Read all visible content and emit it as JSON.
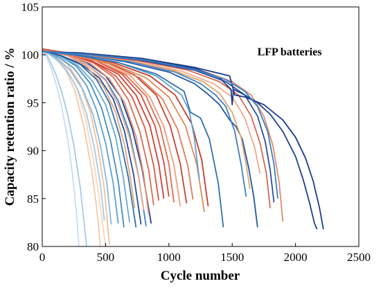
{
  "chart_data": {
    "type": "line",
    "title": "",
    "xlabel": "Cycle number",
    "ylabel": "Capacity retention ratio / %",
    "annotation": "LFP batteries",
    "xlim": [
      0,
      2500
    ],
    "ylim": [
      80,
      105
    ],
    "xticks": [
      0,
      500,
      1000,
      1500,
      2000,
      2500
    ],
    "yticks": [
      80,
      85,
      90,
      95,
      100,
      105
    ],
    "grid": false,
    "legend": "none",
    "series": [
      {
        "color": "#a9c9e6",
        "x": [
          0,
          30,
          60,
          100,
          150,
          200,
          250,
          300,
          330,
          350
        ],
        "y": [
          100.3,
          100.1,
          99.4,
          98.2,
          96.3,
          93.8,
          90.5,
          86.2,
          82.6,
          80.0
        ]
      },
      {
        "color": "#c9dcee",
        "x": [
          0,
          30,
          60,
          100,
          150,
          200,
          240,
          270,
          290
        ],
        "y": [
          100.2,
          99.9,
          99.0,
          97.4,
          94.8,
          91.3,
          87.4,
          83.5,
          80.0
        ]
      },
      {
        "color": "#f6c9a8",
        "x": [
          0,
          40,
          100,
          180,
          260,
          330,
          390,
          430,
          460
        ],
        "y": [
          100.4,
          100.3,
          99.8,
          98.6,
          96.2,
          92.4,
          88.0,
          84.0,
          80.0
        ]
      },
      {
        "color": "#f8d7bd",
        "x": [
          0,
          40,
          100,
          180,
          270,
          340,
          400,
          450,
          500
        ],
        "y": [
          100.4,
          100.4,
          99.9,
          98.8,
          96.6,
          93.4,
          89.4,
          85.0,
          80.0
        ]
      },
      {
        "color": "#f4bf99",
        "x": [
          0,
          40,
          100,
          200,
          300,
          380,
          440,
          490,
          530
        ],
        "y": [
          100.5,
          100.4,
          100.0,
          99.0,
          97.0,
          94.0,
          90.3,
          86.0,
          80.2
        ]
      },
      {
        "color": "#a7c7e3",
        "x": [
          0,
          50,
          120,
          200,
          280,
          350,
          410,
          460,
          490
        ],
        "y": [
          100.3,
          100.1,
          99.4,
          98.2,
          96.4,
          93.8,
          90.4,
          86.4,
          82.7
        ]
      },
      {
        "color": "#87b8dc",
        "x": [
          0,
          50,
          120,
          220,
          320,
          400,
          460,
          510,
          545
        ],
        "y": [
          100.4,
          100.2,
          99.6,
          98.4,
          96.4,
          93.8,
          90.5,
          86.6,
          82.3
        ]
      },
      {
        "color": "#5aa0cc",
        "x": [
          0,
          50,
          150,
          250,
          350,
          430,
          500,
          560,
          600
        ],
        "y": [
          100.4,
          100.2,
          99.6,
          98.6,
          96.8,
          94.2,
          90.8,
          86.6,
          82.4
        ]
      },
      {
        "color": "#3e8dc2",
        "x": [
          0,
          50,
          150,
          270,
          380,
          470,
          540,
          600,
          645
        ],
        "y": [
          100.5,
          100.3,
          99.8,
          98.8,
          97.0,
          94.4,
          91.0,
          86.8,
          82.0
        ]
      },
      {
        "color": "#6aa9d3",
        "x": [
          0,
          50,
          150,
          280,
          400,
          500,
          580,
          640,
          690
        ],
        "y": [
          100.4,
          100.3,
          99.8,
          98.9,
          97.2,
          94.8,
          91.4,
          87.2,
          82.5
        ]
      },
      {
        "color": "#2a6fb0",
        "x": [
          0,
          50,
          150,
          300,
          430,
          530,
          610,
          680,
          740
        ],
        "y": [
          100.4,
          100.3,
          99.9,
          99.0,
          97.4,
          95.0,
          91.6,
          87.2,
          82.0
        ]
      },
      {
        "color": "#1f4e9a",
        "x": [
          0,
          50,
          150,
          300,
          450,
          560,
          650,
          720,
          780
        ],
        "y": [
          100.4,
          100.3,
          99.9,
          99.1,
          97.6,
          95.4,
          92.0,
          87.6,
          82.3
        ]
      },
      {
        "color": "#3b82c4",
        "x": [
          0,
          50,
          200,
          350,
          500,
          600,
          690,
          760,
          820
        ],
        "y": [
          100.5,
          100.4,
          99.9,
          99.0,
          97.4,
          95.2,
          91.8,
          87.4,
          82.1
        ]
      },
      {
        "color": "#1b3f8f",
        "x": [
          0,
          50,
          200,
          350,
          500,
          620,
          710,
          790,
          860
        ],
        "y": [
          100.5,
          100.4,
          100.0,
          99.2,
          97.8,
          95.6,
          92.3,
          88.0,
          82.4
        ]
      },
      {
        "color": "#e8a27b",
        "x": [
          0,
          50,
          200,
          350,
          480,
          580,
          650,
          700,
          730
        ],
        "y": [
          100.5,
          100.4,
          99.9,
          98.8,
          96.8,
          94.0,
          90.6,
          86.8,
          84.0
        ]
      },
      {
        "color": "#f2a98a",
        "x": [
          0,
          50,
          200,
          350,
          500,
          600,
          690,
          760,
          800
        ],
        "y": [
          100.5,
          100.4,
          100.0,
          99.0,
          97.3,
          94.8,
          91.3,
          87.3,
          83.8
        ]
      },
      {
        "color": "#e98e70",
        "x": [
          0,
          50,
          200,
          380,
          530,
          650,
          740,
          800,
          840
        ],
        "y": [
          100.5,
          100.4,
          100.0,
          99.1,
          97.5,
          95.0,
          91.5,
          87.6,
          83.4
        ]
      },
      {
        "color": "#d96a52",
        "x": [
          0,
          50,
          200,
          400,
          560,
          680,
          770,
          840,
          880
        ],
        "y": [
          100.6,
          100.5,
          100.1,
          99.2,
          97.7,
          95.3,
          92.0,
          88.0,
          84.3
        ]
      },
      {
        "color": "#e0533e",
        "x": [
          0,
          50,
          200,
          400,
          580,
          710,
          810,
          880,
          920
        ],
        "y": [
          100.6,
          100.5,
          100.1,
          99.3,
          97.8,
          95.6,
          92.4,
          88.4,
          84.8
        ]
      },
      {
        "color": "#cf3d2e",
        "x": [
          0,
          50,
          200,
          400,
          600,
          740,
          850,
          920,
          960
        ],
        "y": [
          100.6,
          100.5,
          100.1,
          99.3,
          98.0,
          95.8,
          92.6,
          88.6,
          85.0
        ]
      },
      {
        "color": "#d94a35",
        "x": [
          0,
          50,
          200,
          420,
          630,
          780,
          890,
          960,
          1000
        ],
        "y": [
          100.6,
          100.5,
          100.2,
          99.4,
          98.0,
          95.8,
          92.6,
          88.8,
          85.2
        ]
      },
      {
        "color": "#e36b4f",
        "x": [
          0,
          50,
          200,
          450,
          660,
          820,
          930,
          1000,
          1040
        ],
        "y": [
          100.5,
          100.4,
          100.1,
          99.3,
          97.9,
          95.7,
          92.5,
          88.6,
          84.6
        ]
      },
      {
        "color": "#f09c7b",
        "x": [
          0,
          50,
          200,
          450,
          690,
          850,
          960,
          1040,
          1090
        ],
        "y": [
          100.5,
          100.4,
          100.1,
          99.3,
          97.9,
          95.6,
          92.5,
          88.5,
          84.2
        ]
      },
      {
        "color": "#c9412e",
        "x": [
          0,
          50,
          250,
          500,
          730,
          900,
          1010,
          1090,
          1140
        ],
        "y": [
          100.6,
          100.5,
          100.1,
          99.3,
          97.9,
          95.8,
          92.6,
          88.6,
          84.5
        ]
      },
      {
        "color": "#e07b5a",
        "x": [
          0,
          50,
          250,
          520,
          770,
          950,
          1070,
          1150,
          1190
        ],
        "y": [
          100.5,
          100.4,
          100.0,
          99.1,
          97.6,
          95.4,
          92.2,
          88.4,
          84.9
        ]
      },
      {
        "color": "#dd8a55",
        "x": [
          0,
          50,
          250,
          550,
          820,
          1000,
          1130,
          1220,
          1280
        ],
        "y": [
          100.5,
          100.4,
          100.0,
          99.1,
          97.6,
          95.6,
          92.6,
          88.6,
          83.6
        ]
      },
      {
        "color": "#c73b28",
        "x": [
          0,
          50,
          250,
          560,
          850,
          1050,
          1180,
          1260,
          1310
        ],
        "y": [
          100.6,
          100.5,
          100.1,
          99.2,
          97.8,
          95.8,
          92.8,
          89.0,
          84.2
        ]
      },
      {
        "color": "#5b9fc9",
        "x": [
          0,
          50,
          250,
          600,
          900,
          1100,
          1160,
          1200,
          1240
        ],
        "y": [
          100.4,
          100.3,
          100.0,
          99.2,
          97.8,
          95.8,
          94.2,
          91.4,
          87.0
        ]
      },
      {
        "color": "#2f6fb4",
        "x": [
          0,
          50,
          250,
          600,
          900,
          1120,
          1170,
          1250,
          1320,
          1390,
          1430
        ],
        "y": [
          100.4,
          100.3,
          100.0,
          99.2,
          98.0,
          96.2,
          94.0,
          93.4,
          91.2,
          86.6,
          82.0
        ]
      },
      {
        "color": "#1f55a6",
        "x": [
          0,
          50,
          300,
          650,
          1000,
          1200,
          1300,
          1400,
          1480,
          1530,
          1580,
          1630,
          1670,
          1700
        ],
        "y": [
          100.4,
          100.3,
          100.0,
          99.3,
          98.2,
          97.0,
          96.0,
          94.8,
          93.2,
          92.5,
          91.2,
          88.2,
          85.2,
          82.0
        ]
      },
      {
        "color": "#3c7ec0",
        "x": [
          0,
          50,
          300,
          700,
          1050,
          1250,
          1370,
          1450,
          1520,
          1570,
          1610
        ],
        "y": [
          100.4,
          100.3,
          100.0,
          99.3,
          98.2,
          97.0,
          95.8,
          94.6,
          92.0,
          88.6,
          85.2
        ]
      },
      {
        "color": "#e0a66a",
        "x": [
          0,
          50,
          300,
          700,
          1050,
          1270,
          1400,
          1500,
          1570,
          1610,
          1640
        ],
        "y": [
          100.5,
          100.4,
          100.1,
          99.4,
          98.3,
          97.2,
          96.0,
          94.0,
          91.4,
          88.6,
          86.0
        ]
      },
      {
        "color": "#f0a88a",
        "x": [
          0,
          50,
          300,
          700,
          1100,
          1350,
          1500,
          1600,
          1680,
          1720
        ],
        "y": [
          100.5,
          100.4,
          100.1,
          99.4,
          98.3,
          97.0,
          95.6,
          93.4,
          90.2,
          87.6
        ]
      },
      {
        "color": "#d9664f",
        "x": [
          0,
          50,
          300,
          750,
          1150,
          1400,
          1550,
          1650,
          1720,
          1770,
          1800
        ],
        "y": [
          100.5,
          100.4,
          100.1,
          99.4,
          98.4,
          97.2,
          95.8,
          93.6,
          90.8,
          87.6,
          84.0
        ]
      },
      {
        "color": "#2b4f9a",
        "x": [
          0,
          50,
          300,
          750,
          1200,
          1450,
          1600,
          1700,
          1760,
          1800,
          1830
        ],
        "y": [
          100.4,
          100.3,
          100.1,
          99.5,
          98.4,
          97.2,
          95.8,
          93.6,
          91.0,
          88.0,
          84.6
        ]
      },
      {
        "color": "#e48a6c",
        "x": [
          0,
          50,
          300,
          800,
          1250,
          1500,
          1650,
          1750,
          1820,
          1870,
          1900
        ],
        "y": [
          100.5,
          100.4,
          100.1,
          99.5,
          98.4,
          97.2,
          95.8,
          93.6,
          90.6,
          86.8,
          82.6
        ]
      },
      {
        "color": "#1c3e8c",
        "x": [
          0,
          50,
          300,
          800,
          1200,
          1400,
          1490,
          1500,
          1510,
          1600,
          1700,
          1800,
          1900,
          2000,
          2060,
          2110,
          2150,
          2170
        ],
        "y": [
          100.4,
          100.3,
          100.2,
          99.6,
          98.6,
          97.6,
          96.4,
          94.8,
          96.4,
          95.8,
          95.0,
          93.8,
          92.0,
          89.4,
          87.0,
          84.6,
          82.4,
          81.8
        ]
      },
      {
        "color": "#1a3b8a",
        "x": [
          0,
          50,
          300,
          800,
          1200,
          1480,
          1520,
          1600,
          1750,
          1900,
          2000,
          2080,
          2140,
          2190,
          2220
        ],
        "y": [
          100.4,
          100.3,
          100.2,
          99.6,
          98.7,
          97.8,
          95.8,
          95.6,
          94.8,
          93.2,
          91.4,
          89.2,
          86.8,
          84.0,
          81.8
        ]
      },
      {
        "color": "#3b7fc4",
        "x": [
          0,
          50,
          300,
          800,
          1200,
          1450,
          1600,
          1700,
          1780,
          1830,
          1860
        ],
        "y": [
          100.4,
          100.3,
          100.1,
          99.5,
          98.5,
          97.4,
          96.2,
          94.6,
          92.0,
          88.6,
          85.0
        ]
      }
    ]
  }
}
